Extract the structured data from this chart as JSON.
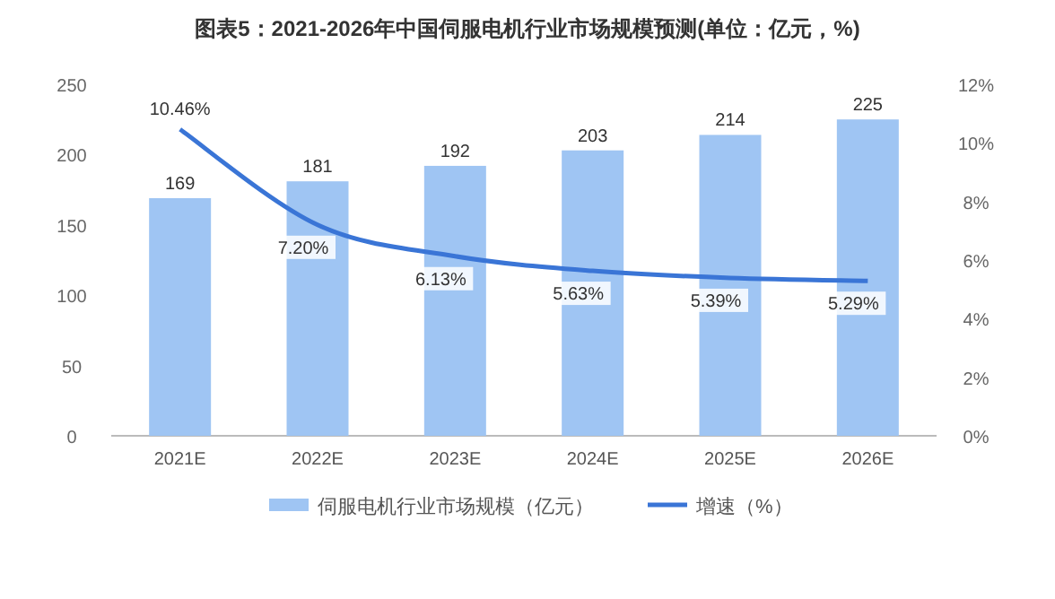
{
  "chart_data": {
    "type": "bar",
    "title": "图表5：2021-2026年中国伺服电机行业市场规模预测(单位：亿元，%)",
    "categories": [
      "2021E",
      "2022E",
      "2023E",
      "2024E",
      "2025E",
      "2026E"
    ],
    "series": [
      {
        "name": "伺服电机行业市场规模（亿元）",
        "color": "#9fc5f3",
        "values": [
          169,
          181,
          192,
          203,
          214,
          225
        ],
        "value_labels": [
          "169",
          "181",
          "192",
          "203",
          "214",
          "225"
        ]
      },
      {
        "name": "增速（%）",
        "type": "line",
        "axis": "y2",
        "color": "#3a75d6",
        "values": [
          10.46,
          7.2,
          6.13,
          5.63,
          5.39,
          5.29
        ],
        "value_labels": [
          "10.46%",
          "7.20%",
          "6.13%",
          "5.63%",
          "5.39%",
          "5.29%"
        ]
      }
    ],
    "ylim": [
      0,
      250
    ],
    "yticks": [
      0,
      50,
      100,
      150,
      200,
      250
    ],
    "y2lim": [
      0,
      12
    ],
    "y2ticks": [
      {
        "value": 0,
        "label": "0%"
      },
      {
        "value": 2,
        "label": "2%"
      },
      {
        "value": 4,
        "label": "4%"
      },
      {
        "value": 6,
        "label": "6%"
      },
      {
        "value": 8,
        "label": "8%"
      },
      {
        "value": 10,
        "label": "10%"
      },
      {
        "value": 12,
        "label": "12%"
      }
    ],
    "legend": "bottom",
    "marker": "none",
    "line_style": "solid"
  }
}
